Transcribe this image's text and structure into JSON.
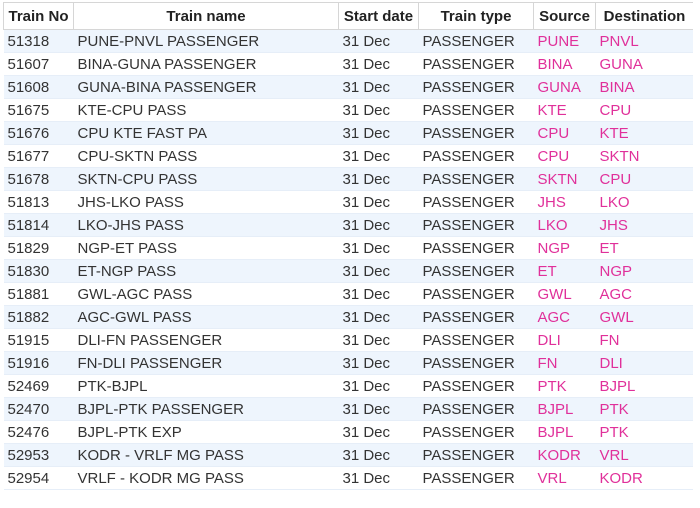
{
  "table": {
    "headers": [
      "Train No",
      "Train name",
      "Start date",
      "Train type",
      "Source",
      "Destination"
    ],
    "rows": [
      [
        "51318",
        "PUNE-PNVL PASSENGER",
        "31 Dec",
        "PASSENGER",
        "PUNE",
        "PNVL"
      ],
      [
        "51607",
        "BINA-GUNA PASSENGER",
        "31 Dec",
        "PASSENGER",
        "BINA",
        "GUNA"
      ],
      [
        "51608",
        "GUNA-BINA PASSENGER",
        "31 Dec",
        "PASSENGER",
        "GUNA",
        "BINA"
      ],
      [
        "51675",
        "KTE-CPU PASS",
        "31 Dec",
        "PASSENGER",
        "KTE",
        "CPU"
      ],
      [
        "51676",
        "CPU KTE FAST PA",
        "31 Dec",
        "PASSENGER",
        "CPU",
        "KTE"
      ],
      [
        "51677",
        "CPU-SKTN PASS",
        "31 Dec",
        "PASSENGER",
        "CPU",
        "SKTN"
      ],
      [
        "51678",
        "SKTN-CPU PASS",
        "31 Dec",
        "PASSENGER",
        "SKTN",
        "CPU"
      ],
      [
        "51813",
        "JHS-LKO PASS",
        "31 Dec",
        "PASSENGER",
        "JHS",
        "LKO"
      ],
      [
        "51814",
        "LKO-JHS PASS",
        "31 Dec",
        "PASSENGER",
        "LKO",
        "JHS"
      ],
      [
        "51829",
        "NGP-ET PASS",
        "31 Dec",
        "PASSENGER",
        "NGP",
        "ET"
      ],
      [
        "51830",
        "ET-NGP PASS",
        "31 Dec",
        "PASSENGER",
        "ET",
        "NGP"
      ],
      [
        "51881",
        "GWL-AGC PASS",
        "31 Dec",
        "PASSENGER",
        "GWL",
        "AGC"
      ],
      [
        "51882",
        "AGC-GWL PASS",
        "31 Dec",
        "PASSENGER",
        "AGC",
        "GWL"
      ],
      [
        "51915",
        "DLI-FN PASSENGER",
        "31 Dec",
        "PASSENGER",
        "DLI",
        "FN"
      ],
      [
        "51916",
        "FN-DLI PASSENGER",
        "31 Dec",
        "PASSENGER",
        "FN",
        "DLI"
      ],
      [
        "52469",
        "PTK-BJPL",
        "31 Dec",
        "PASSENGER",
        "PTK",
        "BJPL"
      ],
      [
        "52470",
        "BJPL-PTK PASSENGER",
        "31 Dec",
        "PASSENGER",
        "BJPL",
        "PTK"
      ],
      [
        "52476",
        "BJPL-PTK EXP",
        "31 Dec",
        "PASSENGER",
        "BJPL",
        "PTK"
      ],
      [
        "52953",
        "KODR - VRLF MG PASS",
        "31 Dec",
        "PASSENGER",
        "KODR",
        "VRL"
      ],
      [
        "52954",
        "VRLF - KODR MG PASS",
        "31 Dec",
        "PASSENGER",
        "VRL",
        "KODR"
      ]
    ]
  }
}
